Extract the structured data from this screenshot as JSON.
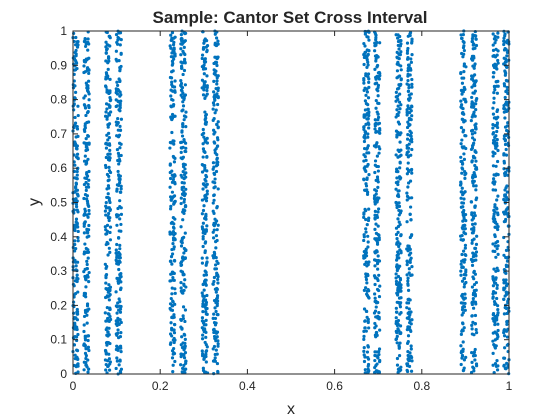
{
  "chart_data": {
    "type": "scatter",
    "title": "Sample: Cantor Set Cross Interval",
    "xlabel": "x",
    "ylabel": "y",
    "xlim": [
      0,
      1
    ],
    "ylim": [
      0,
      1
    ],
    "xticks": [
      "0",
      "0.2",
      "0.4",
      "0.6",
      "0.8",
      "1"
    ],
    "yticks": [
      "0",
      "0.1",
      "0.2",
      "0.3",
      "0.4",
      "0.5",
      "0.6",
      "0.7",
      "0.8",
      "0.9",
      "1"
    ],
    "grid": false,
    "legend": "none",
    "marker_color": "#0072BD",
    "x_support_intervals": [
      [
        0,
        0.037037
      ],
      [
        0.074074,
        0.111111
      ],
      [
        0.222222,
        0.259259
      ],
      [
        0.296296,
        0.333333
      ],
      [
        0.666667,
        0.703704
      ],
      [
        0.740741,
        0.777778
      ],
      [
        0.888889,
        0.925926
      ],
      [
        0.962963,
        1
      ]
    ],
    "y_support_interval": [
      0,
      1
    ]
  }
}
